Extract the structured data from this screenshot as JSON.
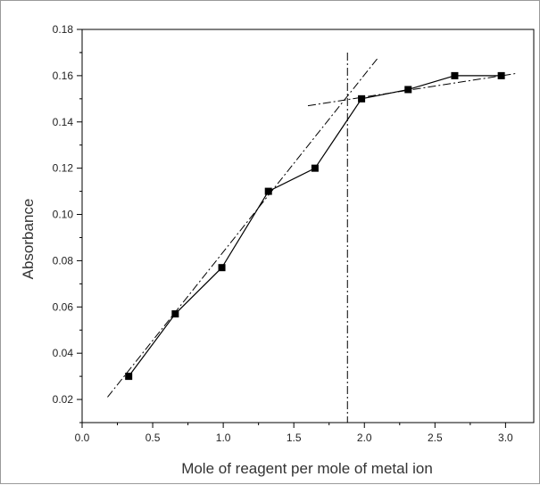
{
  "chart_data": {
    "type": "line",
    "title": "",
    "xlabel": "Mole of reagent per mole of metal ion",
    "ylabel": "Absorbance",
    "xlim": [
      0.0,
      3.2
    ],
    "ylim": [
      0.01,
      0.18
    ],
    "x_ticks": [
      0.0,
      0.5,
      1.0,
      1.5,
      2.0,
      2.5,
      3.0
    ],
    "x_tick_labels": [
      "0.0",
      "0.5",
      "1.0",
      "1.5",
      "2.0",
      "2.5",
      "3.0"
    ],
    "y_ticks": [
      0.02,
      0.04,
      0.06,
      0.08,
      0.1,
      0.12,
      0.14,
      0.16,
      0.18
    ],
    "y_tick_labels": [
      "0.02",
      "0.04",
      "0.06",
      "0.08",
      "0.10",
      "0.12",
      "0.14",
      "0.16",
      "0.18"
    ],
    "series": [
      {
        "x": [
          0.33,
          0.66,
          0.99,
          1.32,
          1.65,
          1.98,
          2.31,
          2.64,
          2.97
        ],
        "y": [
          0.03,
          0.057,
          0.077,
          0.11,
          0.12,
          0.15,
          0.154,
          0.16,
          0.16
        ],
        "marker": "square",
        "line_style": "solid",
        "color": "#000000"
      }
    ],
    "fit_lines": [
      {
        "style": "dash-dot",
        "x": [
          0.18,
          2.1
        ],
        "y": [
          0.021,
          0.168
        ]
      },
      {
        "style": "dash-dot",
        "x": [
          1.6,
          3.08
        ],
        "y": [
          0.147,
          0.161
        ]
      }
    ],
    "vertical_line": {
      "style": "dash-dot",
      "x": 1.88
    },
    "grid": false,
    "legend": "none"
  }
}
